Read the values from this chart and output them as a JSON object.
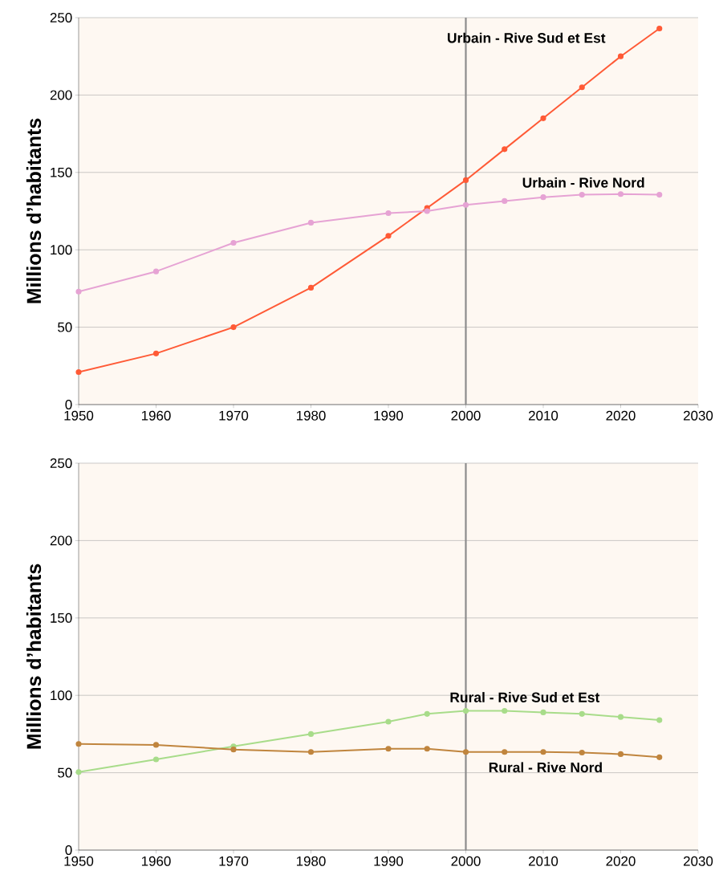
{
  "chart_data": [
    {
      "type": "line",
      "ylabel": "Millions d’habitants",
      "x": [
        1950,
        1960,
        1970,
        1980,
        1990,
        1995,
        2000,
        2005,
        2010,
        2015,
        2020,
        2025
      ],
      "series": [
        {
          "name": "Urbain - Rive Sud et Est",
          "color": "#ff5a36",
          "values": [
            21,
            33,
            50,
            75.5,
            109,
            127,
            145,
            165,
            185,
            205,
            225,
            243
          ]
        },
        {
          "name": "Urbain - Rive Nord",
          "color": "#e6a3d4",
          "values": [
            73,
            86,
            104.5,
            117.5,
            123.7,
            125,
            129,
            131.5,
            134,
            135.6,
            136,
            135.6
          ]
        }
      ],
      "xlim": [
        1950,
        2030
      ],
      "xticks": [
        1950,
        1960,
        1970,
        1980,
        1990,
        2000,
        2010,
        2020,
        2030
      ],
      "ylim": [
        0,
        250
      ],
      "yticks": [
        0,
        50,
        100,
        150,
        200,
        250
      ],
      "grid": "y",
      "marker": "circle",
      "ref_lines": [
        {
          "axis": "x",
          "value": 2000,
          "color": "#8c8c8c"
        }
      ]
    },
    {
      "type": "line",
      "ylabel": "Millions d’habitants",
      "x": [
        1950,
        1960,
        1970,
        1980,
        1990,
        1995,
        2000,
        2005,
        2010,
        2015,
        2020,
        2025
      ],
      "series": [
        {
          "name": "Rural - Rive Sud et Est",
          "color": "#a8dc8a",
          "values": [
            50.4,
            58.6,
            67,
            75,
            83,
            88,
            90,
            90,
            89,
            88,
            86,
            84
          ]
        },
        {
          "name": "Rural - Rive Nord",
          "color": "#c0853e",
          "values": [
            68.6,
            68,
            65,
            63.4,
            65.5,
            65.5,
            63.4,
            63.4,
            63.4,
            63,
            62,
            60
          ]
        }
      ],
      "xlim": [
        1950,
        2030
      ],
      "xticks": [
        1950,
        1960,
        1970,
        1980,
        1990,
        2000,
        2010,
        2020,
        2030
      ],
      "ylim": [
        0,
        250
      ],
      "yticks": [
        0,
        50,
        100,
        150,
        200,
        250
      ],
      "grid": "y",
      "marker": "circle",
      "ref_lines": [
        {
          "axis": "x",
          "value": 2000,
          "color": "#8c8c8c"
        }
      ]
    }
  ]
}
